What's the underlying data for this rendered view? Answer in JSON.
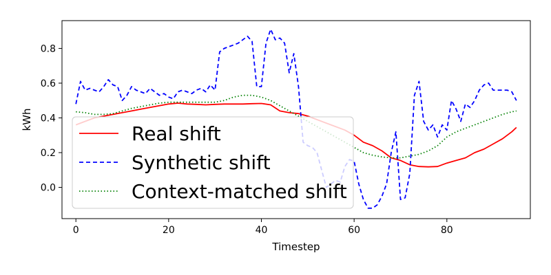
{
  "chart_data": {
    "type": "line",
    "title": "",
    "xlabel": "Timestep",
    "ylabel": "kWh",
    "xlim": [
      -3,
      98
    ],
    "ylim": [
      -0.18,
      0.96
    ],
    "xticks": [
      0,
      20,
      40,
      60,
      80
    ],
    "yticks": [
      0.0,
      0.2,
      0.4,
      0.6,
      0.8
    ],
    "grid": false,
    "legend_position": "lower-left",
    "series": [
      {
        "name": "Real shift",
        "color": "#ff0000",
        "linestyle": "solid",
        "x": [
          0,
          2,
          4,
          6,
          8,
          10,
          12,
          14,
          16,
          18,
          20,
          22,
          24,
          26,
          28,
          30,
          32,
          34,
          36,
          38,
          40,
          42,
          44,
          46,
          48,
          50,
          52,
          54,
          56,
          58,
          60,
          62,
          64,
          66,
          68,
          70,
          72,
          74,
          76,
          78,
          80,
          82,
          84,
          86,
          88,
          90,
          92,
          94,
          95
        ],
        "y": [
          0.36,
          0.38,
          0.4,
          0.41,
          0.42,
          0.43,
          0.44,
          0.45,
          0.46,
          0.47,
          0.48,
          0.485,
          0.48,
          0.478,
          0.475,
          0.478,
          0.48,
          0.48,
          0.48,
          0.482,
          0.483,
          0.475,
          0.44,
          0.43,
          0.425,
          0.41,
          0.39,
          0.37,
          0.35,
          0.33,
          0.3,
          0.26,
          0.24,
          0.21,
          0.17,
          0.155,
          0.13,
          0.12,
          0.118,
          0.12,
          0.14,
          0.155,
          0.17,
          0.2,
          0.22,
          0.25,
          0.28,
          0.32,
          0.345
        ]
      },
      {
        "name": "Synthetic shift",
        "color": "#0000ff",
        "linestyle": "dashed",
        "x": [
          0,
          1,
          2,
          3,
          4,
          5,
          6,
          7,
          8,
          9,
          10,
          11,
          12,
          13,
          14,
          15,
          16,
          17,
          18,
          19,
          20,
          21,
          22,
          23,
          24,
          25,
          26,
          27,
          28,
          29,
          30,
          31,
          32,
          33,
          34,
          35,
          36,
          37,
          38,
          39,
          40,
          41,
          42,
          43,
          44,
          45,
          46,
          47,
          48,
          49,
          50,
          51,
          52,
          53,
          54,
          55,
          56,
          57,
          58,
          59,
          60,
          61,
          62,
          63,
          64,
          65,
          66,
          67,
          68,
          69,
          70,
          71,
          72,
          73,
          74,
          75,
          76,
          77,
          78,
          79,
          80,
          81,
          82,
          83,
          84,
          85,
          86,
          87,
          88,
          89,
          90,
          91,
          92,
          93,
          94,
          95
        ],
        "y": [
          0.48,
          0.61,
          0.56,
          0.57,
          0.56,
          0.55,
          0.58,
          0.62,
          0.59,
          0.58,
          0.5,
          0.53,
          0.58,
          0.56,
          0.55,
          0.54,
          0.57,
          0.55,
          0.53,
          0.54,
          0.52,
          0.51,
          0.55,
          0.56,
          0.55,
          0.54,
          0.56,
          0.57,
          0.55,
          0.59,
          0.56,
          0.78,
          0.8,
          0.81,
          0.82,
          0.83,
          0.85,
          0.87,
          0.84,
          0.58,
          0.58,
          0.83,
          0.91,
          0.85,
          0.86,
          0.83,
          0.66,
          0.77,
          0.58,
          0.26,
          0.24,
          0.23,
          0.2,
          0.1,
          0.0,
          0.02,
          0.04,
          0.03,
          0.12,
          0.16,
          0.15,
          0.02,
          -0.07,
          -0.12,
          -0.12,
          -0.1,
          -0.05,
          0.02,
          0.2,
          0.32,
          -0.07,
          -0.06,
          0.08,
          0.53,
          0.61,
          0.38,
          0.33,
          0.36,
          0.29,
          0.36,
          0.33,
          0.5,
          0.45,
          0.38,
          0.48,
          0.46,
          0.5,
          0.56,
          0.59,
          0.6,
          0.56,
          0.56,
          0.56,
          0.56,
          0.55,
          0.5
        ]
      },
      {
        "name": "Context-matched shift",
        "color": "#008000",
        "linestyle": "dotted",
        "x": [
          0,
          2,
          4,
          6,
          8,
          10,
          12,
          14,
          16,
          18,
          20,
          22,
          24,
          26,
          28,
          30,
          32,
          34,
          36,
          38,
          40,
          42,
          44,
          46,
          48,
          50,
          52,
          54,
          56,
          58,
          60,
          62,
          64,
          66,
          68,
          70,
          72,
          74,
          76,
          78,
          80,
          82,
          84,
          86,
          88,
          90,
          92,
          94,
          95
        ],
        "y": [
          0.435,
          0.43,
          0.42,
          0.42,
          0.425,
          0.44,
          0.455,
          0.465,
          0.475,
          0.485,
          0.49,
          0.49,
          0.49,
          0.49,
          0.49,
          0.49,
          0.5,
          0.52,
          0.53,
          0.53,
          0.52,
          0.5,
          0.47,
          0.44,
          0.41,
          0.38,
          0.35,
          0.32,
          0.29,
          0.26,
          0.23,
          0.2,
          0.185,
          0.175,
          0.17,
          0.17,
          0.18,
          0.19,
          0.21,
          0.24,
          0.29,
          0.32,
          0.34,
          0.36,
          0.38,
          0.4,
          0.42,
          0.435,
          0.44
        ]
      }
    ]
  }
}
